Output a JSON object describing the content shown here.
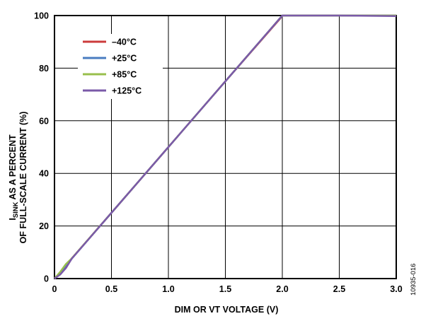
{
  "chart_data": {
    "type": "line",
    "xlabel": "DIM OR VT VOLTAGE (V)",
    "ylabel_line1_main": "I",
    "ylabel_line1_sub": "SINK",
    "ylabel_line1_rest": " AS A PERCENT",
    "ylabel_line2": "OF FULL-SCALE CURRENT (%)",
    "xlim": [
      0,
      3.0
    ],
    "ylim": [
      0,
      100
    ],
    "x_ticks": [
      "0",
      "0.5",
      "1.0",
      "1.5",
      "2.0",
      "2.5",
      "3.0"
    ],
    "y_ticks": [
      "0",
      "20",
      "40",
      "60",
      "80",
      "100"
    ],
    "grid": true,
    "legend_position": "top-left",
    "series": [
      {
        "name": "–40°C",
        "color": "#cc3b3b",
        "x": [
          0,
          0.05,
          0.1,
          0.15,
          0.5,
          1.0,
          1.5,
          1.98,
          2.0,
          2.5,
          3.0
        ],
        "y": [
          0,
          2,
          4,
          7.6,
          25,
          50,
          75,
          98.8,
          100,
          100,
          100
        ]
      },
      {
        "name": "+25°C",
        "color": "#4a7cc0",
        "x": [
          0,
          0.05,
          0.1,
          0.15,
          0.5,
          1.0,
          1.5,
          2.0,
          2.5,
          3.0
        ],
        "y": [
          0,
          2,
          4.5,
          7.5,
          25,
          50,
          75,
          100,
          100,
          100
        ]
      },
      {
        "name": "+85°C",
        "color": "#98bf4c",
        "x": [
          0,
          0.05,
          0.1,
          0.15,
          0.5,
          1.0,
          1.5,
          2.0,
          2.5,
          3.0
        ],
        "y": [
          0,
          2.5,
          5.5,
          7.6,
          25,
          50,
          75,
          100,
          100,
          100
        ]
      },
      {
        "name": "+125°C",
        "color": "#7a5aa8",
        "x": [
          0,
          0.05,
          0.1,
          0.15,
          0.5,
          1.0,
          1.5,
          2.0,
          2.5,
          3.0
        ],
        "y": [
          0,
          1.5,
          4,
          7.5,
          25,
          50,
          75,
          100,
          100,
          99.8
        ]
      }
    ]
  },
  "figure_code": "10935-016"
}
